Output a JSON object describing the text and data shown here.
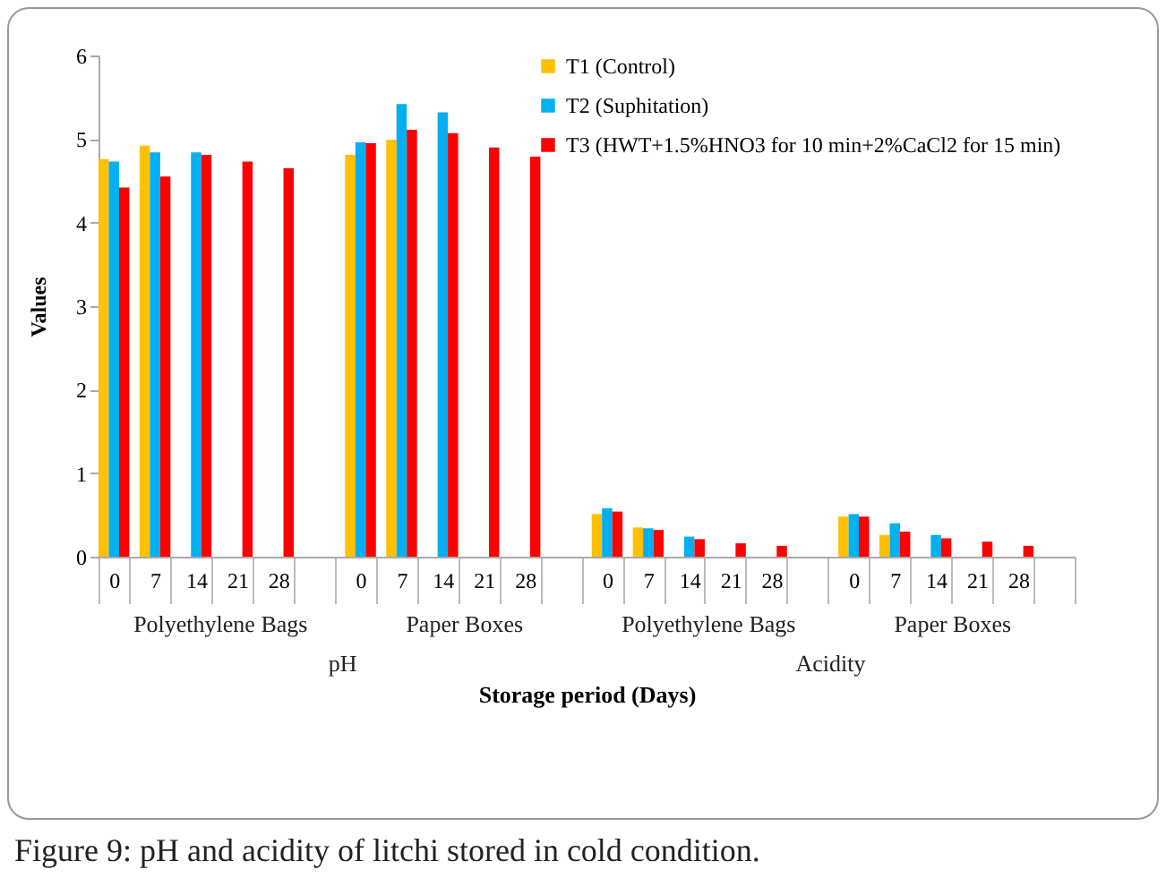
{
  "chart_data": {
    "type": "bar",
    "categories": [
      "0",
      "7",
      "14",
      "21",
      "28",
      null,
      "0",
      "7",
      "14",
      "21",
      "28",
      null,
      "0",
      "7",
      "14",
      "21",
      "28",
      null,
      "0",
      "7",
      "14",
      "21",
      "28",
      null
    ],
    "series": [
      {
        "name": "T1 (Control)",
        "color": "#ffc000",
        "values": [
          4.76,
          4.92,
          null,
          null,
          null,
          null,
          4.81,
          4.99,
          null,
          null,
          null,
          null,
          0.51,
          0.35,
          null,
          null,
          null,
          null,
          0.48,
          0.26,
          null,
          null,
          null,
          null
        ]
      },
      {
        "name": "T2 (Suphitation)",
        "color": "#00b0f0",
        "values": [
          4.73,
          4.84,
          4.84,
          null,
          null,
          null,
          4.96,
          5.42,
          5.32,
          null,
          null,
          null,
          0.58,
          0.34,
          0.24,
          null,
          null,
          null,
          0.51,
          0.4,
          0.26,
          null,
          null,
          null
        ]
      },
      {
        "name": "T3 (HWT+1.5%HNO3 for 10 min+2%CaCl2 for 15 min)",
        "color": "#ff0000",
        "values": [
          4.42,
          4.55,
          4.81,
          4.73,
          4.65,
          null,
          4.95,
          5.11,
          5.07,
          4.9,
          4.79,
          null,
          0.54,
          0.32,
          0.21,
          0.16,
          0.13,
          null,
          0.48,
          0.3,
          0.22,
          0.18,
          0.13,
          null
        ]
      }
    ],
    "ylim": [
      0,
      6
    ],
    "yticks": [
      0,
      1,
      2,
      3,
      4,
      5,
      6
    ],
    "ylabel": "Values",
    "xlabel": "Storage period (Days)",
    "legend": "top right",
    "grid": false,
    "annotations": [
      "Polyethylene Bags",
      "Paper Boxes",
      "Polyethylene Bags",
      "Paper Boxes",
      "pH",
      "Acidity",
      "Figure 9: pH and acidity of litchi stored in cold condition."
    ]
  }
}
